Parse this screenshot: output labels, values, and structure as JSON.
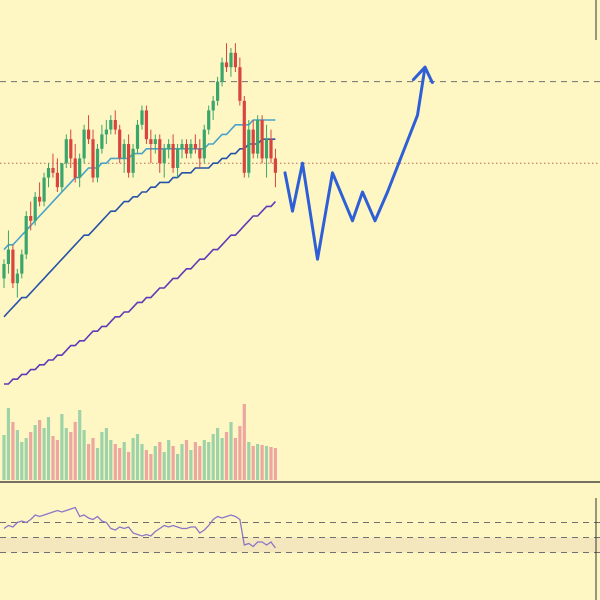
{
  "colors": {
    "background": "#fef7c4",
    "rsi_band": "#f4e7be",
    "candle_up": "#3aa66c",
    "candle_down": "#d9443f",
    "volume_up": "#9ed3a9",
    "volume_down": "#eda6a0",
    "ma_fast": "#4aa3c8",
    "ma_mid": "#2653a8",
    "ma_slow": "#5b3cb8",
    "projection": "#2f5fd6",
    "trendline": "#2f5fd6",
    "rsi_line": "#8b76c6",
    "dashed_line": "#707070",
    "dotted_line": "#b56a5a",
    "divider": "#222222"
  },
  "chart_data": {
    "type": "candlestick",
    "title": "",
    "xlabel": "",
    "ylabel": "",
    "ylim": [
      0,
      100
    ],
    "grid": false,
    "horizontal_levels": [
      {
        "style": "dashed",
        "value": 83
      },
      {
        "style": "dotted",
        "value": 66
      }
    ],
    "candles": [
      [
        42,
        46,
        40,
        45
      ],
      [
        45,
        52,
        43,
        48
      ],
      [
        48,
        49,
        40,
        41
      ],
      [
        41,
        44,
        38,
        43
      ],
      [
        43,
        48,
        42,
        47
      ],
      [
        47,
        56,
        46,
        55
      ],
      [
        55,
        58,
        52,
        54
      ],
      [
        54,
        60,
        53,
        59
      ],
      [
        59,
        62,
        57,
        58
      ],
      [
        58,
        64,
        57,
        63
      ],
      [
        63,
        66,
        61,
        65
      ],
      [
        65,
        68,
        63,
        64
      ],
      [
        64,
        67,
        60,
        61
      ],
      [
        61,
        66,
        60,
        66
      ],
      [
        66,
        72,
        65,
        71
      ],
      [
        71,
        73,
        65,
        67
      ],
      [
        67,
        70,
        62,
        63
      ],
      [
        63,
        68,
        61,
        67
      ],
      [
        67,
        74,
        66,
        73
      ],
      [
        73,
        76,
        70,
        71
      ],
      [
        71,
        73,
        62,
        63
      ],
      [
        63,
        70,
        62,
        69
      ],
      [
        69,
        74,
        68,
        72
      ],
      [
        72,
        75,
        70,
        73
      ],
      [
        73,
        76,
        72,
        75
      ],
      [
        75,
        77,
        72,
        73
      ],
      [
        73,
        74,
        66,
        67
      ],
      [
        67,
        71,
        64,
        70
      ],
      [
        70,
        72,
        63,
        64
      ],
      [
        64,
        70,
        63,
        69
      ],
      [
        69,
        75,
        68,
        74
      ],
      [
        74,
        78,
        73,
        77
      ],
      [
        77,
        78,
        70,
        71
      ],
      [
        71,
        73,
        66,
        70
      ],
      [
        70,
        72,
        68,
        71
      ],
      [
        71,
        72,
        64,
        66
      ],
      [
        66,
        70,
        63,
        69
      ],
      [
        69,
        71,
        67,
        70
      ],
      [
        70,
        72,
        64,
        65
      ],
      [
        65,
        70,
        63,
        69
      ],
      [
        69,
        71,
        67,
        70
      ],
      [
        70,
        71,
        67,
        68
      ],
      [
        68,
        71,
        67,
        70
      ],
      [
        70,
        72,
        68,
        69
      ],
      [
        69,
        71,
        65,
        67
      ],
      [
        67,
        74,
        66,
        73
      ],
      [
        73,
        78,
        72,
        77
      ],
      [
        77,
        80,
        75,
        79
      ],
      [
        79,
        84,
        78,
        83
      ],
      [
        83,
        88,
        82,
        87
      ],
      [
        87,
        91,
        85,
        86
      ],
      [
        86,
        90,
        84,
        89
      ],
      [
        89,
        91,
        85,
        86
      ],
      [
        86,
        88,
        78,
        79
      ],
      [
        79,
        80,
        63,
        64
      ],
      [
        64,
        75,
        63,
        73
      ],
      [
        73,
        75,
        67,
        68
      ],
      [
        68,
        76,
        67,
        75
      ],
      [
        75,
        76,
        66,
        67
      ],
      [
        67,
        74,
        63,
        71
      ],
      [
        71,
        73,
        66,
        67
      ],
      [
        67,
        69,
        61,
        64
      ]
    ],
    "volume": [
      45,
      72,
      58,
      50,
      38,
      42,
      48,
      55,
      60,
      52,
      63,
      44,
      40,
      66,
      52,
      48,
      58,
      70,
      50,
      36,
      42,
      32,
      48,
      52,
      40,
      36,
      32,
      38,
      28,
      42,
      46,
      36,
      30,
      26,
      34,
      38,
      28,
      40,
      34,
      26,
      36,
      40,
      30,
      38,
      34,
      40,
      38,
      46,
      52,
      42,
      48,
      58,
      42,
      54,
      76,
      38,
      34,
      36,
      35,
      34,
      33,
      32
    ],
    "moving_averages": [
      {
        "key": "ma_fast",
        "values": [
          48,
          49,
          49,
          50,
          51,
          52,
          53,
          54,
          55,
          56,
          57,
          58,
          59,
          60,
          61,
          62,
          63,
          63,
          64,
          65,
          65,
          65,
          66,
          66,
          67,
          67,
          67,
          67,
          67,
          68,
          68,
          68,
          69,
          69,
          69,
          69,
          69,
          69,
          69,
          69,
          69,
          69,
          69,
          69,
          69,
          69,
          70,
          70,
          71,
          72,
          72,
          73,
          74,
          74,
          74,
          74,
          75,
          75,
          75,
          75,
          75,
          75
        ]
      },
      {
        "key": "ma_mid",
        "values": [
          34,
          35,
          36,
          37,
          38,
          38,
          39,
          40,
          41,
          42,
          43,
          44,
          45,
          46,
          47,
          48,
          49,
          50,
          51,
          51,
          52,
          53,
          54,
          55,
          56,
          56,
          57,
          58,
          58,
          59,
          59,
          60,
          60,
          61,
          61,
          62,
          62,
          62,
          63,
          63,
          64,
          64,
          64,
          65,
          65,
          65,
          65,
          66,
          66,
          67,
          67,
          68,
          68,
          69,
          69,
          70,
          70,
          70,
          71,
          71,
          71,
          71
        ]
      },
      {
        "key": "ma_slow",
        "values": [
          20,
          20,
          21,
          21,
          22,
          22,
          23,
          23,
          24,
          24,
          25,
          25,
          26,
          26,
          27,
          28,
          28,
          29,
          29,
          30,
          31,
          31,
          32,
          32,
          33,
          34,
          34,
          35,
          35,
          36,
          37,
          37,
          38,
          38,
          39,
          40,
          40,
          41,
          42,
          42,
          43,
          44,
          44,
          45,
          46,
          46,
          47,
          48,
          48,
          49,
          50,
          51,
          51,
          52,
          53,
          54,
          55,
          55,
          56,
          57,
          57,
          58
        ]
      }
    ],
    "projection_path": [
      [
        0,
        64
      ],
      [
        3,
        56
      ],
      [
        7,
        66
      ],
      [
        13,
        46
      ],
      [
        19,
        64
      ],
      [
        27,
        54
      ],
      [
        31,
        60
      ],
      [
        36,
        54
      ],
      [
        41,
        60
      ],
      [
        53,
        76
      ],
      [
        56,
        86
      ]
    ],
    "trendline": [
      [
        0,
        115
      ],
      [
        62,
        122
      ]
    ],
    "rsi": {
      "ylim": [
        0,
        100
      ],
      "levels": [
        70,
        50,
        30
      ],
      "values": [
        62,
        66,
        64,
        70,
        72,
        70,
        74,
        80,
        78,
        80,
        82,
        84,
        86,
        84,
        86,
        88,
        90,
        78,
        80,
        76,
        74,
        78,
        72,
        70,
        62,
        60,
        64,
        62,
        64,
        56,
        54,
        52,
        54,
        52,
        58,
        62,
        66,
        64,
        66,
        64,
        62,
        62,
        64,
        64,
        56,
        60,
        66,
        74,
        78,
        76,
        78,
        80,
        78,
        74,
        40,
        42,
        38,
        44,
        44,
        40,
        44,
        36
      ]
    }
  }
}
